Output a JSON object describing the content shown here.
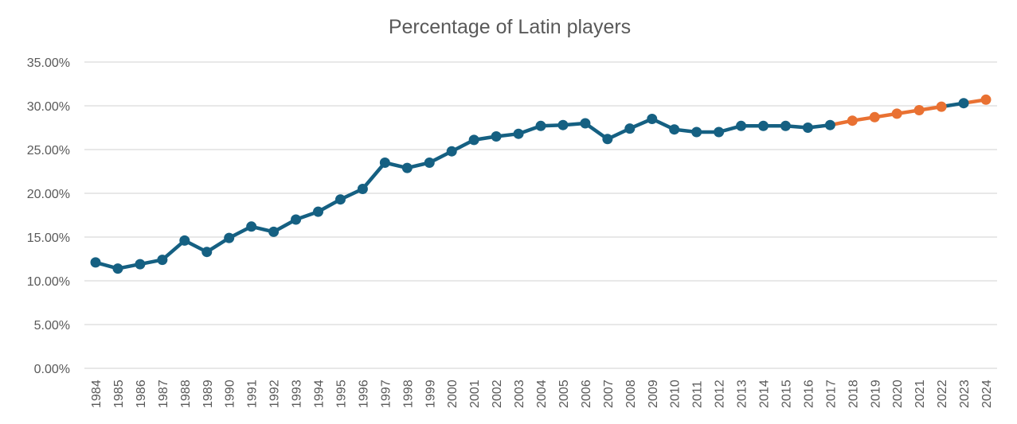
{
  "chart_data": {
    "type": "line",
    "title": "Percentage of Latin players",
    "xlabel": "",
    "ylabel": "",
    "ylim": [
      0,
      35
    ],
    "y_ticks": [
      "0.00%",
      "5.00%",
      "10.00%",
      "15.00%",
      "20.00%",
      "25.00%",
      "30.00%",
      "35.00%"
    ],
    "grid": true,
    "legend": "none",
    "x": [
      "1984",
      "1985",
      "1986",
      "1987",
      "1988",
      "1989",
      "1990",
      "1991",
      "1992",
      "1993",
      "1994",
      "1995",
      "1996",
      "1997",
      "1998",
      "1999",
      "2000",
      "2001",
      "2002",
      "2003",
      "2004",
      "2005",
      "2006",
      "2007",
      "2008",
      "2009",
      "2010",
      "2011",
      "2012",
      "2013",
      "2014",
      "2015",
      "2016",
      "2017",
      "2018",
      "2019",
      "2020",
      "2021",
      "2022",
      "2023",
      "2024"
    ],
    "series": [
      {
        "name": "Percentage of Latin players",
        "values": [
          12.1,
          11.4,
          11.9,
          12.4,
          14.6,
          13.3,
          14.9,
          16.2,
          15.6,
          17.0,
          17.9,
          19.3,
          20.5,
          23.5,
          22.9,
          23.5,
          24.8,
          26.1,
          26.5,
          26.8,
          27.7,
          27.8,
          28.0,
          26.2,
          27.4,
          28.5,
          27.3,
          27.0,
          27.0,
          27.7,
          27.7,
          27.7,
          27.5,
          27.8,
          28.3,
          28.7,
          29.1,
          29.5,
          29.9,
          30.3,
          30.7
        ],
        "point_colors": [
          "b",
          "b",
          "b",
          "b",
          "b",
          "b",
          "b",
          "b",
          "b",
          "b",
          "b",
          "b",
          "b",
          "b",
          "b",
          "b",
          "b",
          "b",
          "b",
          "b",
          "b",
          "b",
          "b",
          "b",
          "b",
          "b",
          "b",
          "b",
          "b",
          "b",
          "b",
          "b",
          "b",
          "b",
          "o",
          "o",
          "o",
          "o",
          "o",
          "b",
          "o"
        ]
      }
    ],
    "colors": {
      "b": "#156082",
      "o": "#E97132",
      "grid": "#D9D9D9",
      "text": "#595959"
    }
  }
}
